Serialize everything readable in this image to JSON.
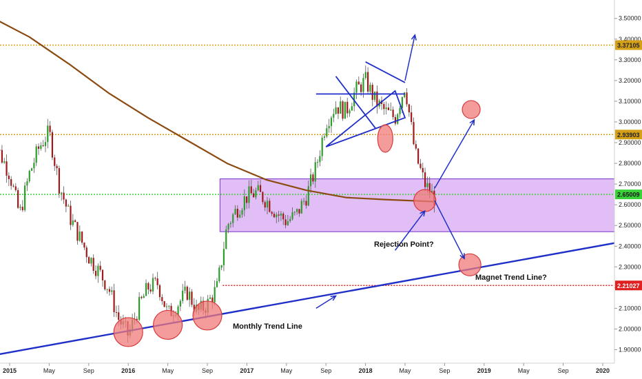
{
  "chart_data": {
    "type": "candlestick",
    "y_axis": {
      "ticks": [
        "1.90000",
        "2.00000",
        "2.10000",
        "2.20000",
        "2.30000",
        "2.40000",
        "2.50000",
        "2.60000",
        "2.70000",
        "2.80000",
        "2.90000",
        "3.00000",
        "3.10000",
        "3.20000",
        "3.30000",
        "3.40000",
        "3.50000"
      ],
      "ylim": [
        1.85,
        3.55
      ]
    },
    "x_axis": {
      "ticks": [
        {
          "label": "2015",
          "date": "2015-01",
          "bold": true
        },
        {
          "label": "May",
          "date": "2015-05",
          "bold": false
        },
        {
          "label": "Sep",
          "date": "2015-09",
          "bold": false
        },
        {
          "label": "2016",
          "date": "2016-01",
          "bold": true
        },
        {
          "label": "May",
          "date": "2016-05",
          "bold": false
        },
        {
          "label": "Sep",
          "date": "2016-09",
          "bold": false
        },
        {
          "label": "2017",
          "date": "2017-01",
          "bold": true
        },
        {
          "label": "May",
          "date": "2017-05",
          "bold": false
        },
        {
          "label": "Sep",
          "date": "2017-09",
          "bold": false
        },
        {
          "label": "2018",
          "date": "2018-01",
          "bold": true
        },
        {
          "label": "May",
          "date": "2018-05",
          "bold": false
        },
        {
          "label": "Sep",
          "date": "2018-09",
          "bold": false
        },
        {
          "label": "2019",
          "date": "2019-01",
          "bold": true
        },
        {
          "label": "May",
          "date": "2019-05",
          "bold": false
        },
        {
          "label": "Sep",
          "date": "2019-09",
          "bold": false
        },
        {
          "label": "2020",
          "date": "2020-01",
          "bold": true
        }
      ]
    },
    "price_levels": [
      {
        "value": 3.37105,
        "label": "3.37105",
        "color": "#d4a017",
        "style": "dotted"
      },
      {
        "value": 2.93903,
        "label": "2.93903",
        "color": "#d4a017",
        "style": "dotted"
      },
      {
        "value": 2.65009,
        "label": "2.65009",
        "color": "#39d339",
        "style": "dotted"
      },
      {
        "value": 2.21027,
        "label": "2.21027",
        "color": "#e02020",
        "style": "dotted"
      }
    ],
    "zone": {
      "from": "2016-10",
      "to": "2020-04",
      "low": 2.47,
      "high": 2.725,
      "fill": "#dcb4f5",
      "stroke": "#7a30c8"
    },
    "moving_average": {
      "color": "#8b4a10",
      "points": [
        {
          "date": "2014-11",
          "value": 3.51
        },
        {
          "date": "2015-03",
          "value": 3.41
        },
        {
          "date": "2015-07",
          "value": 3.28
        },
        {
          "date": "2015-11",
          "value": 3.14
        },
        {
          "date": "2016-03",
          "value": 3.02
        },
        {
          "date": "2016-07",
          "value": 2.91
        },
        {
          "date": "2016-11",
          "value": 2.8
        },
        {
          "date": "2017-03",
          "value": 2.72
        },
        {
          "date": "2017-07",
          "value": 2.67
        },
        {
          "date": "2017-11",
          "value": 2.635
        },
        {
          "date": "2018-03",
          "value": 2.625
        },
        {
          "date": "2018-08",
          "value": 2.615
        }
      ]
    },
    "trend_line": {
      "color": "#1f2fc8",
      "from": {
        "date": "2014-11",
        "value": 1.87
      },
      "to": {
        "date": "2020-04",
        "value": 2.415
      }
    },
    "series_points": [
      {
        "date": "2014-11",
        "value": 2.95
      },
      {
        "date": "2015-01",
        "value": 2.75
      },
      {
        "date": "2015-02",
        "value": 2.55
      },
      {
        "date": "2015-03",
        "value": 2.75
      },
      {
        "date": "2015-04",
        "value": 2.88
      },
      {
        "date": "2015-05",
        "value": 2.95
      },
      {
        "date": "2015-06",
        "value": 2.7
      },
      {
        "date": "2015-07",
        "value": 2.55
      },
      {
        "date": "2015-08",
        "value": 2.45
      },
      {
        "date": "2015-09",
        "value": 2.35
      },
      {
        "date": "2015-10",
        "value": 2.28
      },
      {
        "date": "2015-11",
        "value": 2.2
      },
      {
        "date": "2015-12",
        "value": 2.05
      },
      {
        "date": "2016-01",
        "value": 1.97
      },
      {
        "date": "2016-02",
        "value": 2.1
      },
      {
        "date": "2016-03",
        "value": 2.2
      },
      {
        "date": "2016-04",
        "value": 2.22
      },
      {
        "date": "2016-05",
        "value": 2.07
      },
      {
        "date": "2016-06",
        "value": 2.12
      },
      {
        "date": "2016-07",
        "value": 2.18
      },
      {
        "date": "2016-08",
        "value": 2.08
      },
      {
        "date": "2016-09",
        "value": 2.12
      },
      {
        "date": "2016-10",
        "value": 2.2
      },
      {
        "date": "2016-11",
        "value": 2.5
      },
      {
        "date": "2016-12",
        "value": 2.58
      },
      {
        "date": "2017-01",
        "value": 2.64
      },
      {
        "date": "2017-02",
        "value": 2.66
      },
      {
        "date": "2017-03",
        "value": 2.62
      },
      {
        "date": "2017-04",
        "value": 2.56
      },
      {
        "date": "2017-05",
        "value": 2.52
      },
      {
        "date": "2017-06",
        "value": 2.55
      },
      {
        "date": "2017-07",
        "value": 2.64
      },
      {
        "date": "2017-08",
        "value": 2.78
      },
      {
        "date": "2017-09",
        "value": 3.0
      },
      {
        "date": "2017-10",
        "value": 3.08
      },
      {
        "date": "2017-11",
        "value": 3.05
      },
      {
        "date": "2017-12",
        "value": 3.15
      },
      {
        "date": "2018-01",
        "value": 3.2
      },
      {
        "date": "2018-02",
        "value": 3.1
      },
      {
        "date": "2018-03",
        "value": 3.05
      },
      {
        "date": "2018-04",
        "value": 3.02
      },
      {
        "date": "2018-05",
        "value": 3.18
      },
      {
        "date": "2018-06",
        "value": 2.85
      },
      {
        "date": "2018-07",
        "value": 2.7
      },
      {
        "date": "2018-08",
        "value": 2.63
      }
    ],
    "shapes": {
      "triangle": [
        {
          "date": "2017-09",
          "value": 2.88
        },
        {
          "date": "2018-05",
          "value": 3.02
        },
        {
          "date": "2018-04",
          "value": 3.15
        },
        {
          "date": "2017-09",
          "value": 2.88
        }
      ],
      "horizontal": {
        "from": "2017-08",
        "to": "2018-05",
        "value": 3.135
      }
    },
    "circles": [
      {
        "date": "2016-01",
        "value": 1.985,
        "r": 21
      },
      {
        "date": "2016-05",
        "value": 2.02,
        "r": 21
      },
      {
        "date": "2016-09",
        "value": 2.065,
        "r": 21
      },
      {
        "date": "2018-03",
        "value": 2.92,
        "r": 11,
        "ry": 20
      },
      {
        "date": "2018-07",
        "value": 2.62,
        "r": 16
      },
      {
        "date": "2018-12",
        "value": 3.06,
        "r": 13
      },
      {
        "date": "2018-12",
        "value": 2.31,
        "r": 16
      }
    ],
    "arrows": [
      {
        "from": {
          "date": "2018-05",
          "value": 3.2
        },
        "to": {
          "date": "2018-06",
          "value": 3.42
        }
      },
      {
        "from": {
          "date": "2018-08",
          "value": 2.68
        },
        "to": {
          "date": "2018-12",
          "value": 3.01
        }
      },
      {
        "from": {
          "date": "2018-08",
          "value": 2.62
        },
        "to": {
          "date": "2018-11",
          "value": 2.34
        }
      },
      {
        "from": {
          "date": "2018-04",
          "value": 2.38
        },
        "to": {
          "date": "2018-07",
          "value": 2.57
        }
      },
      {
        "from": {
          "date": "2017-08",
          "value": 2.1
        },
        "to": {
          "date": "2017-10",
          "value": 2.16
        }
      }
    ],
    "annotations": [
      {
        "text": "Monthly Trend Line",
        "date": "2017-00",
        "value": 2.055
      },
      {
        "text": "Rejection Point?",
        "date": "2018-02",
        "value": 2.42
      },
      {
        "text": "Magnet Trend Line?",
        "date": "2019-00",
        "value": 2.255
      }
    ]
  }
}
